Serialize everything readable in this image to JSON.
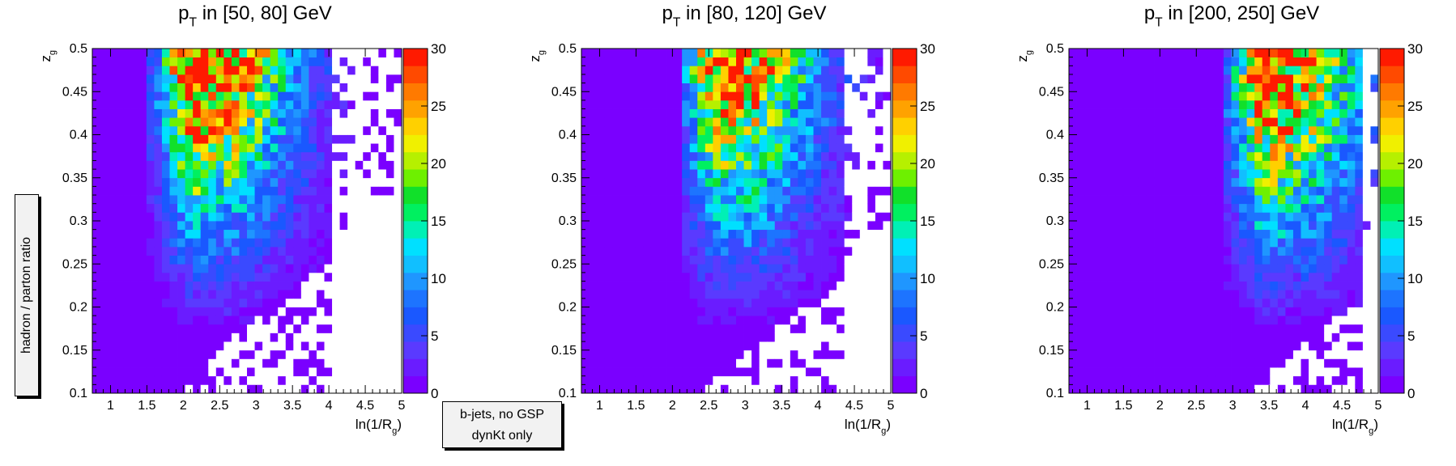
{
  "legend_text": {
    "ylabel": "hadron / parton ratio",
    "note_line1": "b-jets, no GSP",
    "note_line2": "dynKt only"
  },
  "colors": {
    "palette": [
      "#7a00ff",
      "#6a1cff",
      "#5a3aff",
      "#3a4aff",
      "#1a58ff",
      "#1d74ff",
      "#1f96ff",
      "#11bfff",
      "#00e0ff",
      "#00f0b5",
      "#00f060",
      "#11e02a",
      "#6ef000",
      "#b6f000",
      "#f0f000",
      "#ffd000",
      "#ffa200",
      "#ff7a00",
      "#ff4a00",
      "#ff1a00"
    ],
    "empty": "#ffffff"
  },
  "chart_data": [
    {
      "type": "heatmap",
      "title_main": "p",
      "title_sub": "T",
      "title_rest": " in [50, 80] GeV",
      "xlabel_main": "ln(1/R",
      "xlabel_sub": "g",
      "xlabel_end": ")",
      "ylabel_main": "z",
      "ylabel_sub": "g",
      "xlim": [
        0.75,
        5.0
      ],
      "ylim": [
        0.1,
        0.5
      ],
      "zlim": [
        0,
        30
      ],
      "x_ticks": [
        "1",
        "1.5",
        "2",
        "2.5",
        "3",
        "3.5",
        "4",
        "4.5",
        "5"
      ],
      "y_ticks": [
        "0.1",
        "0.15",
        "0.2",
        "0.25",
        "0.3",
        "0.35",
        "0.4",
        "0.45",
        "0.5"
      ],
      "z_ticks": [
        "0",
        "5",
        "10",
        "15",
        "20",
        "25",
        "30"
      ],
      "n_xbins": 40,
      "n_ybins": 40,
      "onset": 1.5,
      "peak_x": 2.2,
      "peak_y": 0.45,
      "endpoint": 5.0,
      "empty_beyond": 4.0,
      "peak_value": 28
    },
    {
      "type": "heatmap",
      "title_main": "p",
      "title_sub": "T",
      "title_rest": " in [80, 120] GeV",
      "xlabel_main": "ln(1/R",
      "xlabel_sub": "g",
      "xlabel_end": ")",
      "ylabel_main": "z",
      "ylabel_sub": "g",
      "xlim": [
        0.75,
        5.0
      ],
      "ylim": [
        0.1,
        0.5
      ],
      "zlim": [
        0,
        30
      ],
      "x_ticks": [
        "1",
        "1.5",
        "2",
        "2.5",
        "3",
        "3.5",
        "4",
        "4.5",
        "5"
      ],
      "y_ticks": [
        "0.1",
        "0.15",
        "0.2",
        "0.25",
        "0.3",
        "0.35",
        "0.4",
        "0.45",
        "0.5"
      ],
      "z_ticks": [
        "0",
        "5",
        "10",
        "15",
        "20",
        "25",
        "30"
      ],
      "n_xbins": 40,
      "n_ybins": 40,
      "onset": 2.1,
      "peak_x": 2.7,
      "peak_y": 0.44,
      "endpoint": 5.0,
      "empty_beyond": 4.4,
      "peak_value": 24
    },
    {
      "type": "heatmap",
      "title_main": "p",
      "title_sub": "T",
      "title_rest": " in [200, 250] GeV",
      "xlabel_main": "ln(1/R",
      "xlabel_sub": "g",
      "xlabel_end": ")",
      "ylabel_main": "z",
      "ylabel_sub": "g",
      "xlim": [
        0.75,
        5.0
      ],
      "ylim": [
        0.1,
        0.5
      ],
      "zlim": [
        0,
        30
      ],
      "x_ticks": [
        "1",
        "1.5",
        "2",
        "2.5",
        "3",
        "3.5",
        "4",
        "4.5",
        "5"
      ],
      "y_ticks": [
        "0.1",
        "0.15",
        "0.2",
        "0.25",
        "0.3",
        "0.35",
        "0.4",
        "0.45",
        "0.5"
      ],
      "z_ticks": [
        "0",
        "5",
        "10",
        "15",
        "20",
        "25",
        "30"
      ],
      "n_xbins": 40,
      "n_ybins": 40,
      "onset": 2.9,
      "peak_x": 3.5,
      "peak_y": 0.42,
      "endpoint": 5.0,
      "empty_beyond": 4.8,
      "peak_value": 24
    }
  ]
}
